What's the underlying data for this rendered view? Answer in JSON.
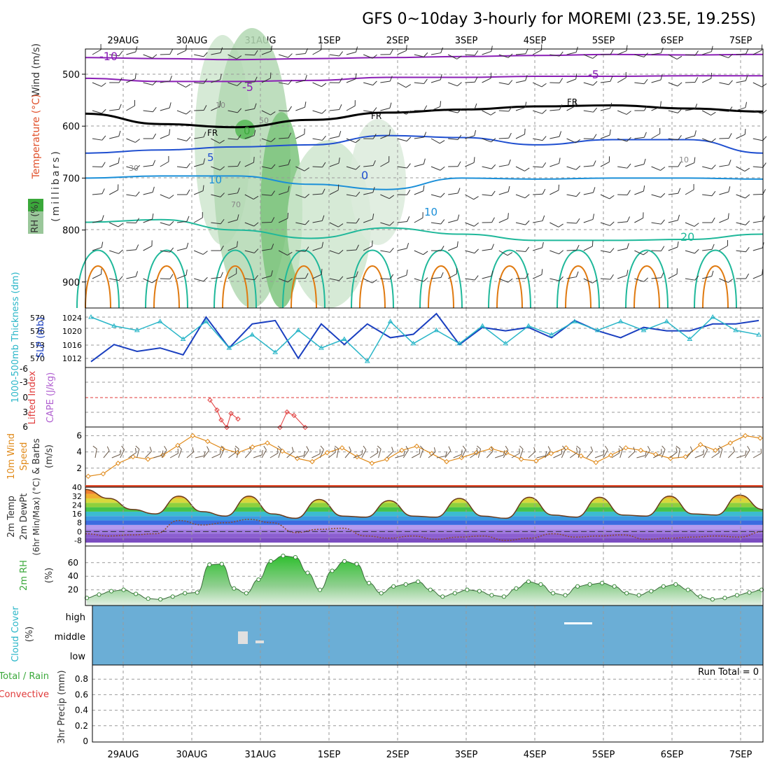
{
  "title": "GFS 0~10day 3-hourly for MOREMI (23.5E, 19.25S)",
  "dates": [
    "29AUG",
    "30AUG",
    "31AUG",
    "1SEP",
    "2SEP",
    "3SEP",
    "4SEP",
    "5SEP",
    "6SEP",
    "7SEP"
  ],
  "colors": {
    "frame": "#000000",
    "grid": "#a0a0a0",
    "rh_green": "#3aa83a",
    "isotherm_cold": "#1f4fd0",
    "isotherm_neg": "#8a1fb5",
    "isotherm_warm": "#1fb89a",
    "hot": "#e07a10",
    "cloud_bg": "#6baed6",
    "slp": "#1a3fc0",
    "thick": "#2ab6c8",
    "wind": "#e08a1a"
  },
  "chart_data": [
    {
      "type": "line",
      "panel": "upper-air cross-section",
      "ylabels": [
        "Wind (m/s)",
        "Temperature (°C)",
        "RH (%)",
        "(millibars)"
      ],
      "y_ticks": [
        500,
        600,
        700,
        800,
        900
      ],
      "contour_labels": [
        "-10",
        "-5",
        "-5",
        "FR",
        "FR",
        "FR",
        "0",
        "5",
        "10",
        "0",
        "10",
        "20",
        "10",
        "30",
        "50",
        "10",
        "70"
      ],
      "series": [
        {
          "name": "-10",
          "values": [
            468,
            470,
            472,
            470,
            468,
            466,
            464,
            462,
            463,
            462
          ]
        },
        {
          "name": "-5",
          "values": [
            508,
            514,
            514,
            512,
            506,
            506,
            504,
            504,
            503,
            503
          ]
        },
        {
          "name": "FR",
          "values": [
            576,
            596,
            602,
            588,
            574,
            568,
            562,
            560,
            566,
            572
          ]
        },
        {
          "name": "5",
          "values": [
            652,
            646,
            640,
            636,
            618,
            622,
            636,
            626,
            626,
            652
          ]
        },
        {
          "name": "10",
          "values": [
            700,
            696,
            696,
            712,
            722,
            700,
            702,
            700,
            700,
            702
          ]
        },
        {
          "name": "20",
          "values": [
            785,
            780,
            800,
            816,
            796,
            808,
            820,
            820,
            818,
            808
          ]
        }
      ]
    },
    {
      "type": "line",
      "panel": "thickness and SLP",
      "ylabels": [
        "1000-500mb Thickness (dm)",
        "SLP (mb)"
      ],
      "thickness_ticks": [
        "579",
        "576",
        "573",
        "570"
      ],
      "slp_ticks": [
        "1024",
        "1020",
        "1016",
        "1012"
      ],
      "series": [
        {
          "name": "SLP",
          "values": [
            1011,
            1016,
            1014,
            1015,
            1013,
            1024,
            1015,
            1022,
            1023,
            1012,
            1022,
            1016,
            1022,
            1018,
            1019,
            1025,
            1016,
            1021,
            1020,
            1021,
            1018,
            1023,
            1020,
            1018,
            1021,
            1020,
            1020,
            1022,
            1022,
            1023
          ]
        },
        {
          "name": "Thickness",
          "values": [
            579,
            577,
            576,
            578,
            574,
            578,
            572,
            575,
            571,
            576,
            572,
            574,
            569,
            578,
            573,
            576,
            573,
            577,
            573,
            577,
            575,
            578,
            576,
            578,
            576,
            578,
            574,
            579,
            576,
            575
          ]
        }
      ]
    },
    {
      "type": "line",
      "panel": "lifted index and CAPE",
      "ylabels": [
        "Lifted Index",
        "CAPE (J/kg)"
      ],
      "y_ticks": [
        "-6",
        "-3",
        "0",
        "3",
        "6"
      ],
      "series": [
        {
          "name": "Lifted Index",
          "values": [
            0.5,
            2.5,
            4.5,
            6,
            3.2,
            4.3,
            6,
            2.9,
            3.6,
            6
          ]
        }
      ]
    },
    {
      "type": "line",
      "panel": "10m wind",
      "ylabels": [
        "10m Wind",
        "Speed",
        "& Barbs",
        "(m/s)"
      ],
      "y_ticks": [
        "2",
        "4",
        "6"
      ],
      "series": [
        {
          "name": "10m Wind Speed",
          "values": [
            1.0,
            1.3,
            2.6,
            3.4,
            3.1,
            3.6,
            4.8,
            6.0,
            5.3,
            4.4,
            3.9,
            4.6,
            5.1,
            4.1,
            3.2,
            2.8,
            3.9,
            4.5,
            3.4,
            2.6,
            3.1,
            4.2,
            4.7,
            3.8,
            2.8,
            3.3,
            3.9,
            4.4,
            3.9,
            3.1,
            2.9,
            3.8,
            4.5,
            3.5,
            2.7,
            3.6,
            4.5,
            4.2,
            3.7,
            3.2,
            3.4,
            4.9,
            4.2,
            5.1,
            6.0,
            5.7
          ]
        }
      ]
    },
    {
      "type": "area",
      "panel": "2m temperature",
      "ylabels": [
        "2m Temp",
        "2m DewPt",
        "(6hr Min/Max) (°C)"
      ],
      "y_ticks": [
        "-8",
        "0",
        "8",
        "16",
        "24",
        "32",
        "40"
      ],
      "series": [
        {
          "name": "2m Temp",
          "values": [
            38,
            30,
            20,
            16,
            32,
            18,
            14,
            32,
            16,
            12,
            29,
            14,
            13,
            28,
            14,
            13,
            30,
            14,
            12,
            31,
            15,
            13,
            31,
            15,
            14,
            32,
            16,
            15,
            33,
            20
          ]
        },
        {
          "name": "2m DewPt",
          "values": [
            -2,
            -4,
            -3,
            -2,
            10,
            6,
            8,
            11,
            8,
            -1,
            2,
            3,
            -4,
            -6,
            -4,
            -7,
            -5,
            -4,
            -8,
            -6,
            -2,
            -5,
            -4,
            -3,
            -7,
            -6,
            -5,
            -4,
            -5,
            0
          ]
        }
      ]
    },
    {
      "type": "area",
      "panel": "2m RH",
      "ylabels": [
        "2m RH",
        "(%)"
      ],
      "y_ticks": [
        "20",
        "40",
        "60"
      ],
      "series": [
        {
          "name": "2m RH",
          "values": [
            8,
            13,
            18,
            20,
            14,
            7,
            6,
            10,
            15,
            16,
            57,
            58,
            22,
            15,
            35,
            62,
            70,
            68,
            45,
            20,
            48,
            62,
            58,
            30,
            15,
            25,
            28,
            32,
            20,
            10,
            15,
            20,
            18,
            12,
            10,
            22,
            32,
            28,
            15,
            12,
            25,
            28,
            30,
            25,
            15,
            12,
            18,
            25,
            28,
            20,
            10,
            6,
            8,
            12,
            16,
            20
          ]
        }
      ]
    },
    {
      "type": "bar",
      "panel": "cloud cover",
      "ylabels": [
        "Cloud Cover",
        "(%)"
      ],
      "categories": [
        "high",
        "middle",
        "low"
      ]
    },
    {
      "type": "bar",
      "panel": "3hr precipitation",
      "ylabels": [
        "Total / Rain",
        "Convective",
        "3hr Precip (mm)"
      ],
      "y_ticks": [
        "0",
        "0.2",
        "0.4",
        "0.6",
        "0.8"
      ],
      "run_total": "Run Total = 0",
      "values": []
    }
  ]
}
